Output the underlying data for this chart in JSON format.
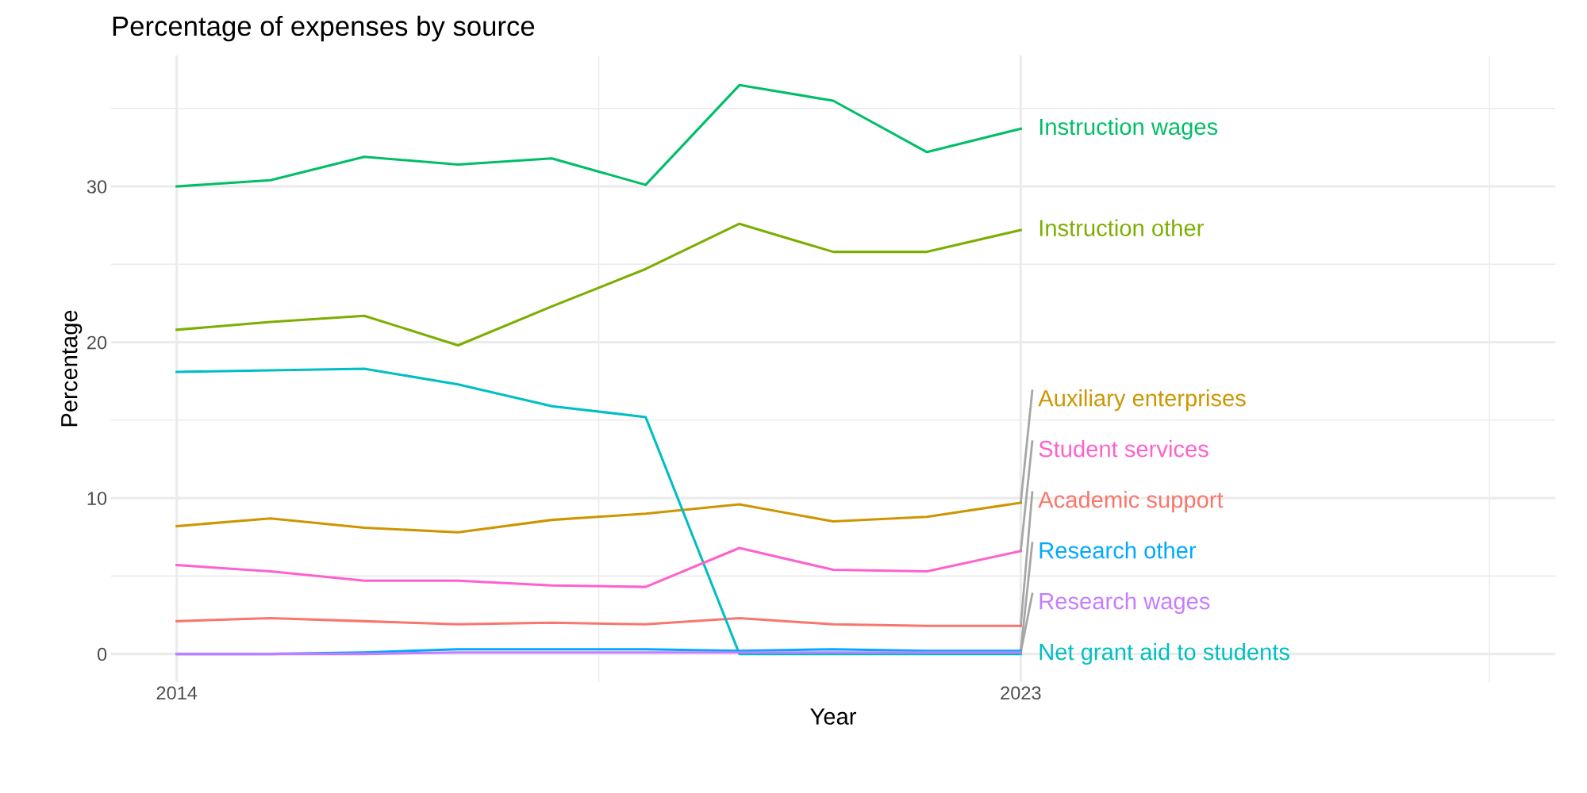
{
  "chart_data": {
    "type": "line",
    "title": "Percentage of expenses by source",
    "xlabel": "Year",
    "ylabel": "Percentage",
    "x": [
      2014,
      2015,
      2016,
      2017,
      2018,
      2019,
      2020,
      2021,
      2022,
      2023
    ],
    "xlim": [
      2013.3,
      2028.7
    ],
    "xticks": [
      2014,
      {
        "value": 2018.5,
        "label": null
      },
      2023,
      {
        "value": 2028,
        "label": null
      }
    ],
    "ylim": [
      -1.8,
      38.4
    ],
    "yticks": [
      0,
      {
        "value": 5,
        "label": null
      },
      10,
      {
        "value": 15,
        "label": null
      },
      20,
      {
        "value": 25,
        "label": null
      },
      30,
      {
        "value": 35,
        "label": null
      }
    ],
    "grid": true,
    "legend": false,
    "marker": "none",
    "line_style": "solid",
    "series": [
      {
        "name": "Academic support",
        "color": "#f8766d",
        "values": [
          2.1,
          2.3,
          2.1,
          1.9,
          2.0,
          1.9,
          2.3,
          1.9,
          1.8,
          1.8
        ]
      },
      {
        "name": "Auxiliary enterprises",
        "color": "#cd9600",
        "values": [
          8.2,
          8.7,
          8.1,
          7.8,
          8.6,
          9.0,
          9.6,
          8.5,
          8.8,
          9.7
        ]
      },
      {
        "name": "Instruction other",
        "color": "#7cae00",
        "values": [
          20.8,
          21.3,
          21.7,
          19.8,
          22.3,
          24.7,
          27.6,
          25.8,
          25.8,
          27.2
        ]
      },
      {
        "name": "Instruction wages",
        "color": "#00be67",
        "values": [
          30.0,
          30.4,
          31.9,
          31.4,
          31.8,
          30.1,
          36.5,
          35.5,
          32.2,
          33.7
        ]
      },
      {
        "name": "Net grant aid to students",
        "color": "#00bfc4",
        "values": [
          18.1,
          18.2,
          18.3,
          17.3,
          15.9,
          15.2,
          0,
          0,
          0,
          0
        ]
      },
      {
        "name": "Research other",
        "color": "#00a9ff",
        "values": [
          0,
          0,
          0.1,
          0.3,
          0.3,
          0.3,
          0.2,
          0.3,
          0.2,
          0.2
        ]
      },
      {
        "name": "Research wages",
        "color": "#c77cff",
        "values": [
          0,
          0,
          0,
          0.1,
          0.1,
          0.1,
          0.1,
          0.1,
          0.1,
          0.1
        ]
      },
      {
        "name": "Student services",
        "color": "#ff61cc",
        "values": [
          5.7,
          5.3,
          4.7,
          4.7,
          4.4,
          4.3,
          6.8,
          5.4,
          5.3,
          6.6
        ]
      }
    ]
  }
}
